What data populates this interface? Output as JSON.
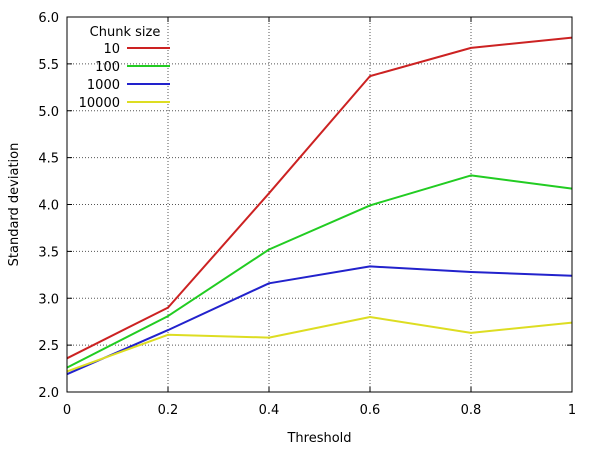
{
  "chart_data": {
    "type": "line",
    "xlabel": "Threshold",
    "ylabel": "Standard deviation",
    "xlim": [
      0,
      1
    ],
    "ylim": [
      2.0,
      6.0
    ],
    "x": [
      0,
      0.2,
      0.4,
      0.6,
      0.8,
      1
    ],
    "x_tick_labels": [
      "0",
      "0.2",
      "0.4",
      "0.6",
      "0.8",
      "1"
    ],
    "y_ticks": [
      2.0,
      2.5,
      3.0,
      3.5,
      4.0,
      4.5,
      5.0,
      5.5,
      6.0
    ],
    "y_tick_labels": [
      "2.0",
      "2.5",
      "3.0",
      "3.5",
      "4.0",
      "4.5",
      "5.0",
      "5.5",
      "6.0"
    ],
    "grid": true,
    "legend_title": "Chunk size",
    "legend_position": "top-left",
    "series": [
      {
        "name": "10",
        "color": "#cc2222",
        "values": [
          2.36,
          2.9,
          4.12,
          5.37,
          5.67,
          5.78
        ]
      },
      {
        "name": "100",
        "color": "#22cc22",
        "values": [
          2.26,
          2.81,
          3.52,
          3.99,
          4.31,
          4.17
        ]
      },
      {
        "name": "1000",
        "color": "#2222cc",
        "values": [
          2.19,
          2.66,
          3.16,
          3.34,
          3.28,
          3.24
        ]
      },
      {
        "name": "10000",
        "color": "#dddd22",
        "values": [
          2.22,
          2.61,
          2.58,
          2.8,
          2.63,
          2.74
        ]
      }
    ]
  }
}
